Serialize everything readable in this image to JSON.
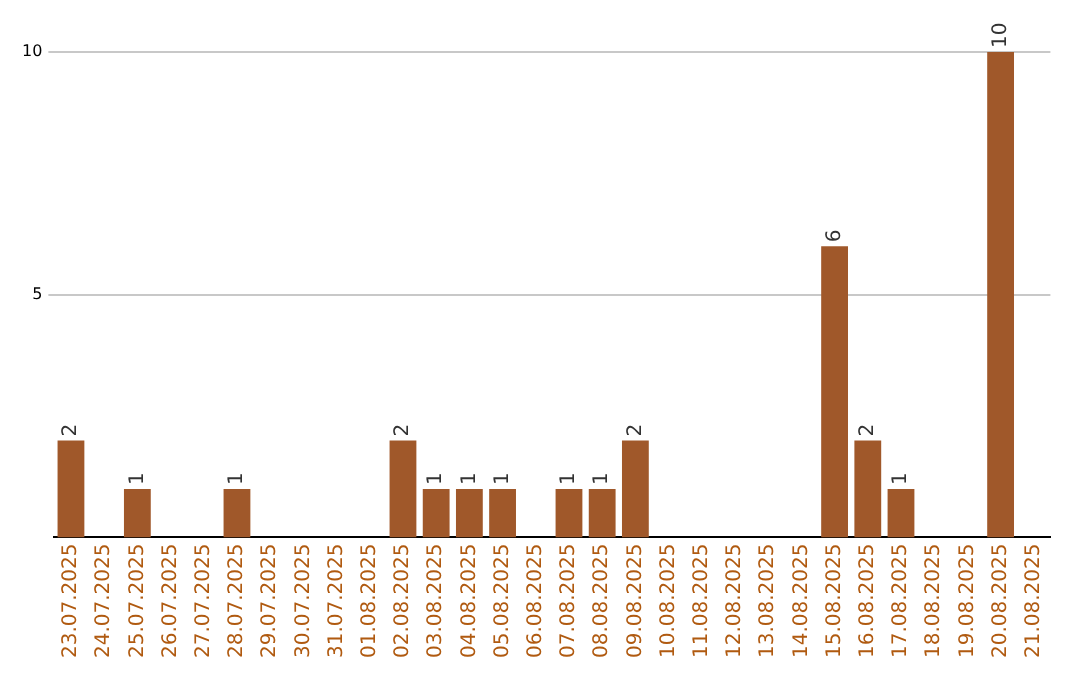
{
  "chart_data": {
    "type": "bar",
    "categories": [
      "23.07.2025",
      "24.07.2025",
      "25.07.2025",
      "26.07.2025",
      "27.07.2025",
      "28.07.2025",
      "29.07.2025",
      "30.07.2025",
      "31.07.2025",
      "01.08.2025",
      "02.08.2025",
      "03.08.2025",
      "04.08.2025",
      "05.08.2025",
      "06.08.2025",
      "07.08.2025",
      "08.08.2025",
      "09.08.2025",
      "10.08.2025",
      "11.08.2025",
      "12.08.2025",
      "13.08.2025",
      "14.08.2025",
      "15.08.2025",
      "16.08.2025",
      "17.08.2025",
      "18.08.2025",
      "19.08.2025",
      "20.08.2025",
      "21.08.2025"
    ],
    "values": [
      2,
      0,
      1,
      0,
      0,
      1,
      0,
      0,
      0,
      0,
      2,
      1,
      1,
      1,
      0,
      1,
      1,
      2,
      0,
      0,
      0,
      0,
      0,
      6,
      2,
      1,
      0,
      0,
      10,
      0
    ],
    "value_labels": [
      "2",
      null,
      "1",
      null,
      null,
      "1",
      null,
      null,
      null,
      null,
      "2",
      "1",
      "1",
      "1",
      null,
      "1",
      "1",
      "2",
      null,
      null,
      null,
      null,
      null,
      "6",
      "2",
      "1",
      null,
      null,
      "10",
      null
    ],
    "color": "#a0582a",
    "ylim": [
      0,
      10
    ],
    "yticks": [
      5,
      10
    ],
    "grid": "y",
    "legend": false
  }
}
